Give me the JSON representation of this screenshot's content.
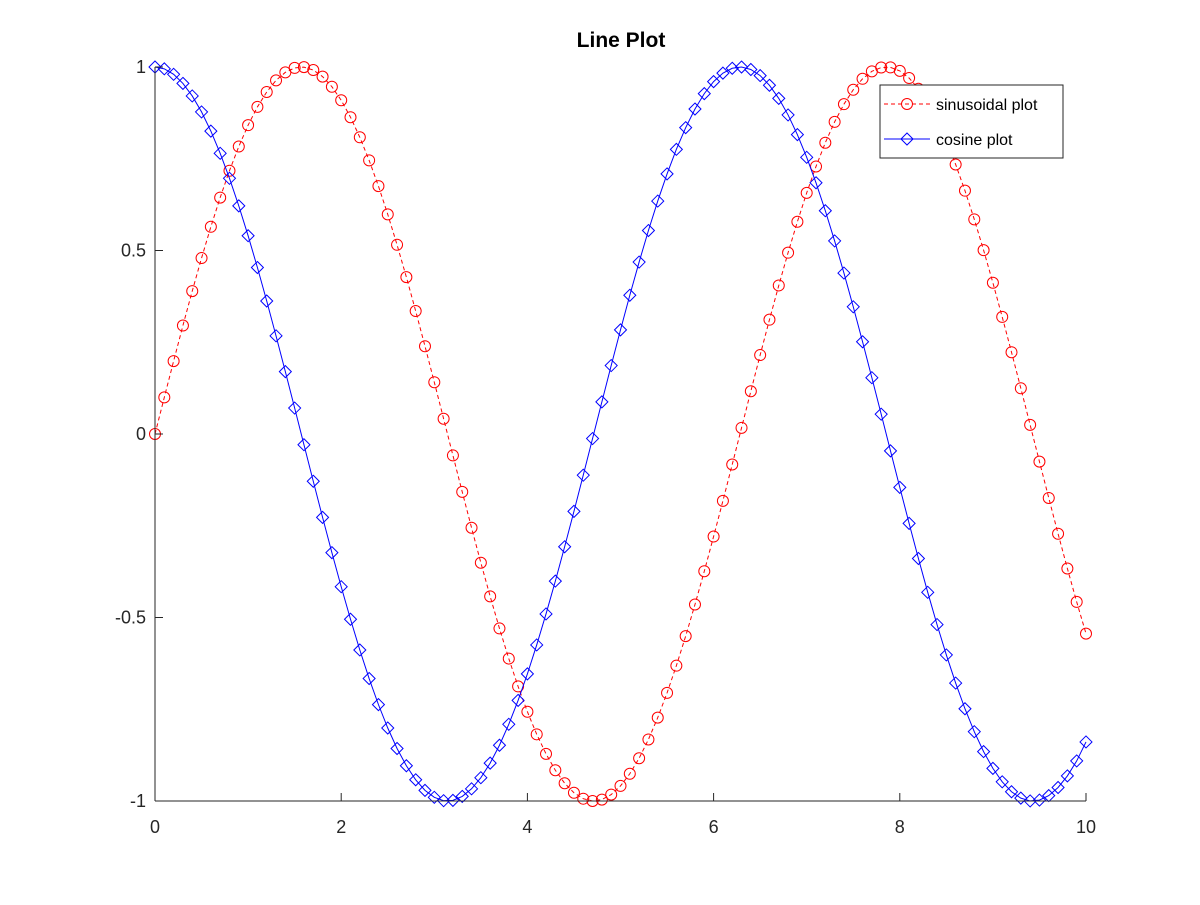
{
  "chart_data": {
    "type": "line",
    "title": "Line Plot",
    "xlabel": "",
    "ylabel": "",
    "xlim": [
      0,
      10
    ],
    "ylim": [
      -1,
      1
    ],
    "xticks": [
      0,
      2,
      4,
      6,
      8,
      10
    ],
    "xtick_labels": [
      "0",
      "2",
      "4",
      "6",
      "8",
      "10"
    ],
    "yticks": [
      -1,
      -0.5,
      0,
      0.5,
      1
    ],
    "ytick_labels": [
      "-1",
      "-0.5",
      "0",
      "0.5",
      "1"
    ],
    "grid": false,
    "legend_position": "top-right",
    "x": [
      0,
      0.1,
      0.2,
      0.3,
      0.4,
      0.5,
      0.6,
      0.7,
      0.8,
      0.9,
      1,
      1.1,
      1.2,
      1.3,
      1.4,
      1.5,
      1.6,
      1.7,
      1.8,
      1.9,
      2,
      2.1,
      2.2,
      2.3,
      2.4,
      2.5,
      2.6,
      2.7,
      2.8,
      2.9,
      3,
      3.1,
      3.2,
      3.3,
      3.4,
      3.5,
      3.6,
      3.7,
      3.8,
      3.9,
      4,
      4.1,
      4.2,
      4.3,
      4.4,
      4.5,
      4.6,
      4.7,
      4.8,
      4.9,
      5,
      5.1,
      5.2,
      5.3,
      5.4,
      5.5,
      5.6,
      5.7,
      5.8,
      5.9,
      6,
      6.1,
      6.2,
      6.3,
      6.4,
      6.5,
      6.6,
      6.7,
      6.8,
      6.9,
      7,
      7.1,
      7.2,
      7.3,
      7.4,
      7.5,
      7.6,
      7.7,
      7.8,
      7.9,
      8,
      8.1,
      8.2,
      8.3,
      8.4,
      8.5,
      8.6,
      8.7,
      8.8,
      8.9,
      9,
      9.1,
      9.2,
      9.3,
      9.4,
      9.5,
      9.6,
      9.7,
      9.8,
      9.9,
      10
    ],
    "series": [
      {
        "name": "sinusoidal plot",
        "color": "#ff0000",
        "line_style": "dashed",
        "marker": "circle",
        "values": [
          0,
          0.0998,
          0.1987,
          0.2955,
          0.3894,
          0.4794,
          0.5646,
          0.6442,
          0.7174,
          0.7833,
          0.8415,
          0.8912,
          0.932,
          0.9636,
          0.9854,
          0.9975,
          0.9996,
          0.9917,
          0.9738,
          0.9463,
          0.9093,
          0.8632,
          0.8085,
          0.7457,
          0.6755,
          0.5985,
          0.5155,
          0.4274,
          0.335,
          0.2392,
          0.1411,
          0.0416,
          -0.0584,
          -0.1577,
          -0.2555,
          -0.3508,
          -0.4425,
          -0.5298,
          -0.6119,
          -0.6878,
          -0.7568,
          -0.8183,
          -0.8716,
          -0.9162,
          -0.9516,
          -0.9775,
          -0.9937,
          -0.9999,
          -0.9962,
          -0.9825,
          -0.9589,
          -0.9258,
          -0.8835,
          -0.8323,
          -0.7728,
          -0.7055,
          -0.6313,
          -0.5507,
          -0.4646,
          -0.3739,
          -0.2794,
          -0.1822,
          -0.0831,
          0.0168,
          0.1165,
          0.2151,
          0.3115,
          0.4048,
          0.4941,
          0.5784,
          0.657,
          0.729,
          0.7937,
          0.8504,
          0.8987,
          0.938,
          0.9679,
          0.9882,
          0.9985,
          0.9989,
          0.9894,
          0.9699,
          0.9407,
          0.9022,
          0.8546,
          0.7985,
          0.7344,
          0.663,
          0.5849,
          0.501,
          0.4121,
          0.319,
          0.2229,
          0.1245,
          0.0248,
          -0.0752,
          -0.1743,
          -0.2718,
          -0.3665,
          -0.4575,
          -0.544
        ]
      },
      {
        "name": "cosine plot",
        "color": "#0000ff",
        "line_style": "solid",
        "marker": "diamond",
        "values": [
          1,
          0.995,
          0.9801,
          0.9553,
          0.9211,
          0.8776,
          0.8253,
          0.7648,
          0.6967,
          0.6216,
          0.5403,
          0.4536,
          0.3624,
          0.2675,
          0.17,
          0.0707,
          -0.0292,
          -0.1288,
          -0.2272,
          -0.3233,
          -0.4161,
          -0.5048,
          -0.5885,
          -0.6663,
          -0.7374,
          -0.8011,
          -0.8569,
          -0.904,
          -0.9422,
          -0.971,
          -0.99,
          -0.9991,
          -0.9983,
          -0.9875,
          -0.9668,
          -0.9365,
          -0.8968,
          -0.8481,
          -0.791,
          -0.7259,
          -0.6536,
          -0.5748,
          -0.4903,
          -0.4008,
          -0.3073,
          -0.2108,
          -0.1122,
          -0.0124,
          0.0875,
          0.1865,
          0.2837,
          0.378,
          0.4685,
          0.5544,
          0.6347,
          0.7087,
          0.7756,
          0.8347,
          0.8855,
          0.9275,
          0.9602,
          0.9833,
          0.9965,
          0.9999,
          0.9932,
          0.9766,
          0.9502,
          0.9144,
          0.8694,
          0.8157,
          0.7539,
          0.6845,
          0.6084,
          0.5261,
          0.4385,
          0.3466,
          0.2513,
          0.1534,
          0.054,
          -0.046,
          -0.1455,
          -0.2435,
          -0.3392,
          -0.4314,
          -0.5193,
          -0.602,
          -0.6787,
          -0.7486,
          -0.8111,
          -0.8654,
          -0.9111,
          -0.9477,
          -0.9748,
          -0.9922,
          -0.9998,
          -0.9975,
          -0.9853,
          -0.9632,
          -0.9316,
          -0.8908,
          -0.8391
        ]
      }
    ]
  }
}
